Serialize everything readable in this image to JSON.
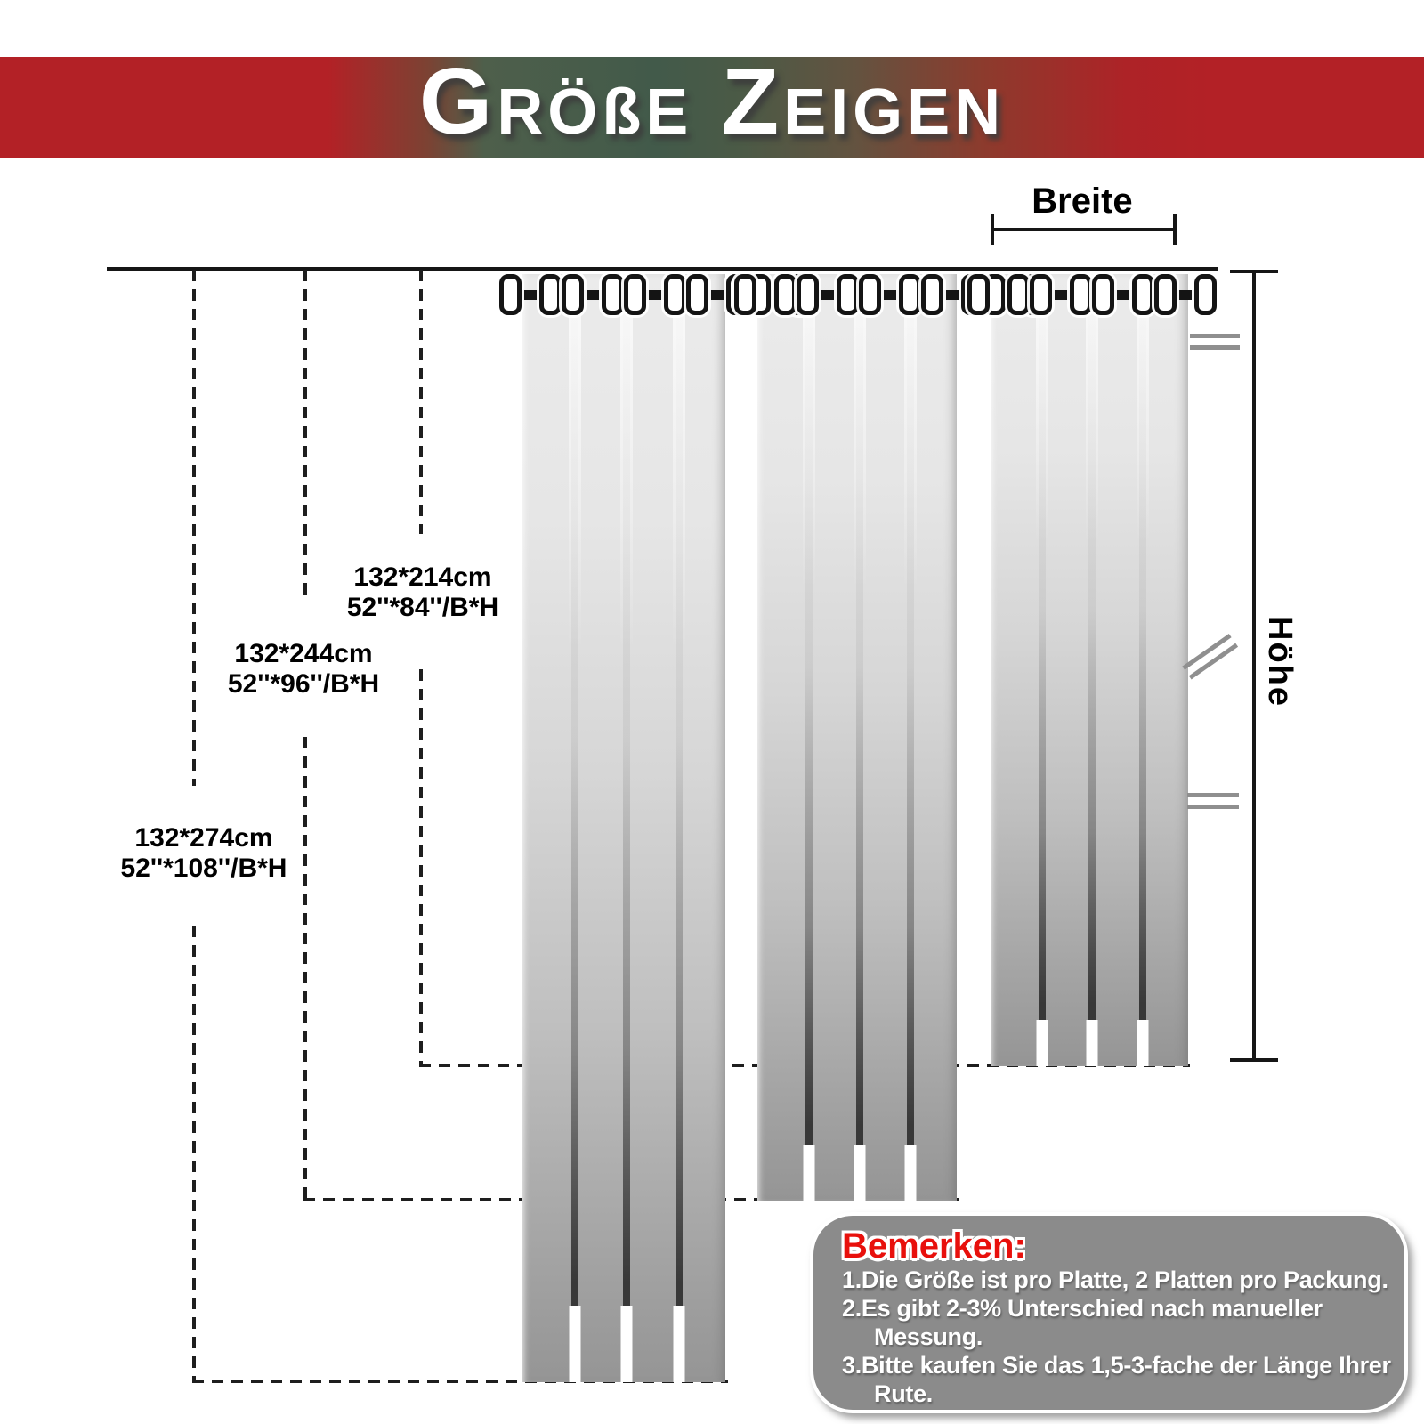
{
  "banner": {
    "title": "GRÖßE ZEIGEN",
    "words": [
      "GRÖßE",
      "ZEIGEN"
    ]
  },
  "measure": {
    "width_label": "Breite",
    "height_label": "Höhe"
  },
  "sizes": [
    {
      "cm": "132*214cm",
      "inch": "52''*84''/B*H"
    },
    {
      "cm": "132*244cm",
      "inch": "52''*96''/B*H"
    },
    {
      "cm": "132*274cm",
      "inch": "52''*108''/B*H"
    }
  ],
  "notes": {
    "title": "Bemerken:",
    "items": [
      {
        "lines": [
          "1.Die Größe ist pro Platte, 2 Platten pro Packung.",
          ""
        ]
      },
      {
        "lines": [
          "2.Es gibt 2-3% Unterschied nach manueller",
          "Messung."
        ]
      },
      {
        "lines": [
          "3.Bitte kaufen Sie das 1,5-3-fache der Länge Ihrer",
          "Rute."
        ]
      }
    ]
  },
  "colors": {
    "banner_red": "#b32126",
    "banner_green": "#42594a",
    "note_box_gray": "#8b8b8b",
    "note_title_red": "#e8100c",
    "fabric_light": "#ebebeb",
    "fabric_dark": "#959595",
    "line_black": "#161616"
  }
}
